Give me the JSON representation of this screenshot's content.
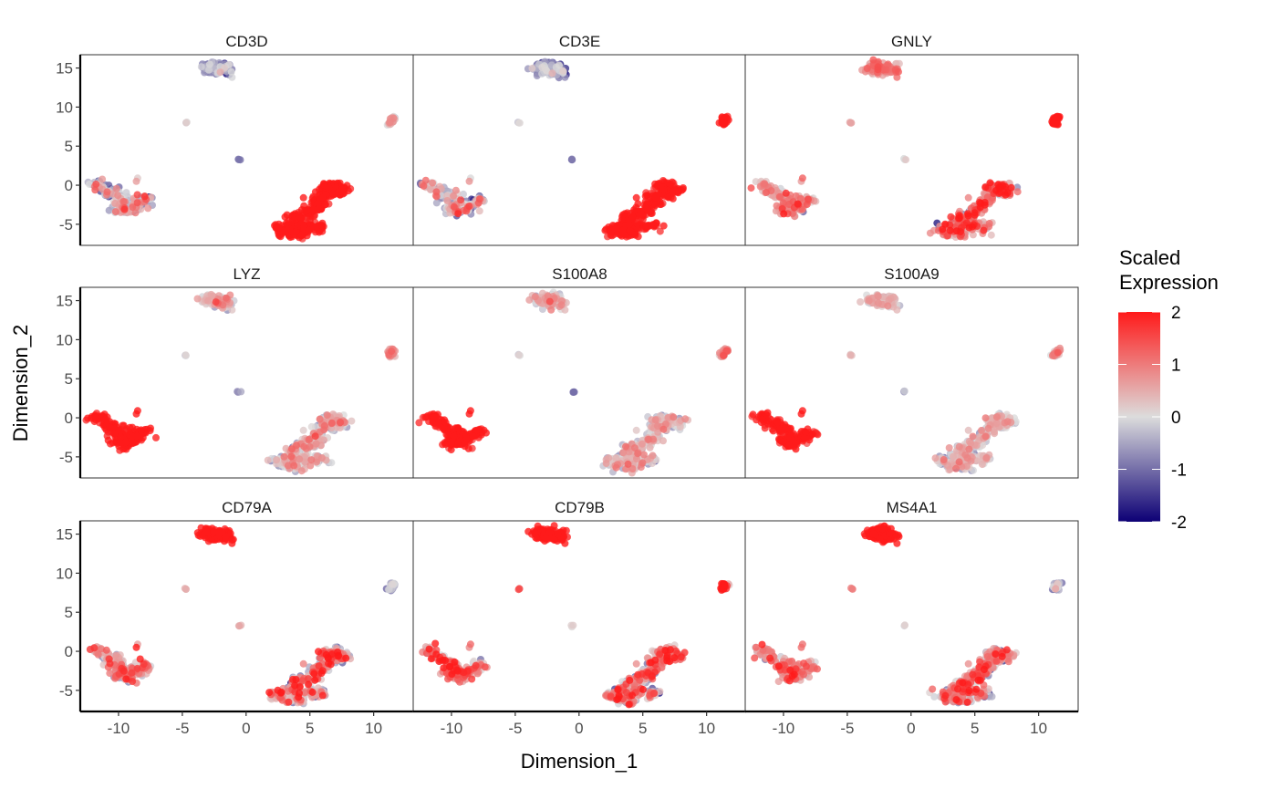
{
  "chart_data": {
    "type": "scatter",
    "facet_layout": "3x3",
    "xlabel": "Dimension_1",
    "ylabel": "Dimension_2",
    "xlim": [
      -13,
      13.1
    ],
    "ylim": [
      -7.7,
      16.7
    ],
    "xticks": [
      -10,
      -5,
      0,
      5,
      10
    ],
    "yticks": [
      -5,
      0,
      5,
      10,
      15
    ],
    "grid": false,
    "legend": {
      "title_lines": [
        "Scaled",
        "Expression"
      ],
      "position": "right",
      "range": [
        -2,
        2
      ],
      "ticks": [
        2,
        1,
        0,
        -1,
        -2
      ],
      "colors": {
        "low": "#0d0075",
        "mid": "#dcdcdc",
        "high": "#ff1a1a"
      }
    },
    "clusters": [
      {
        "id": "top",
        "anchors": [
          [
            -3.0,
            15.0
          ],
          [
            -2.4,
            14.7
          ],
          [
            -1.8,
            15.2
          ],
          [
            -1.6,
            14.6
          ],
          [
            -2.8,
            15.3
          ]
        ],
        "outliers": [
          [
            -1.1,
            13.8
          ]
        ]
      },
      {
        "id": "dot_a",
        "anchors": [
          [
            -4.7,
            8.0
          ]
        ],
        "outliers": []
      },
      {
        "id": "dot_b",
        "anchors": [
          [
            -0.5,
            3.3
          ]
        ],
        "outliers": []
      },
      {
        "id": "right",
        "anchors": [
          [
            11.5,
            8.6
          ],
          [
            11.3,
            8.0
          ]
        ],
        "outliers": []
      },
      {
        "id": "left",
        "anchors": [
          [
            -11.6,
            0.0
          ],
          [
            -10.8,
            -0.8
          ],
          [
            -10.0,
            -1.6
          ],
          [
            -9.5,
            -2.3
          ],
          [
            -9.3,
            -3.3
          ],
          [
            -8.7,
            -2.6
          ],
          [
            -8.0,
            -1.9
          ],
          [
            -9.9,
            -3.0
          ]
        ],
        "outliers": [
          [
            -8.5,
            0.9
          ],
          [
            -8.6,
            0.5
          ]
        ]
      },
      {
        "id": "big",
        "anchors": [
          [
            2.6,
            -5.6
          ],
          [
            3.3,
            -6.0
          ],
          [
            4.1,
            -6.2
          ],
          [
            3.6,
            -5.0
          ],
          [
            4.0,
            -4.0
          ],
          [
            4.8,
            -3.6
          ],
          [
            5.4,
            -3.0
          ],
          [
            5.7,
            -2.3
          ],
          [
            6.1,
            -1.3
          ],
          [
            6.4,
            -0.3
          ],
          [
            7.0,
            -0.1
          ],
          [
            7.6,
            -0.6
          ],
          [
            6.9,
            -0.9
          ],
          [
            5.7,
            -5.3
          ],
          [
            4.6,
            -5.2
          ]
        ],
        "outliers": [
          [
            4.5,
            -1.6
          ]
        ]
      }
    ],
    "panels": [
      {
        "gene": "CD3D",
        "expression": {
          "top": [
            -0.9,
            0.6
          ],
          "dot_a": [
            0,
            0.2
          ],
          "dot_b": [
            -1,
            0.2
          ],
          "right": [
            0.4,
            0.3
          ],
          "left": [
            -0.2,
            0.9
          ],
          "big": [
            2,
            0.2
          ]
        }
      },
      {
        "gene": "CD3E",
        "expression": {
          "top": [
            -0.8,
            0.6
          ],
          "dot_a": [
            0,
            0.2
          ],
          "dot_b": [
            -1,
            0.2
          ],
          "right": [
            2,
            0.2
          ],
          "left": [
            -0.2,
            0.9
          ],
          "big": [
            2,
            0.3
          ]
        }
      },
      {
        "gene": "GNLY",
        "expression": {
          "top": [
            0.8,
            0.4
          ],
          "dot_a": [
            0.6,
            0.2
          ],
          "dot_b": [
            0,
            0.2
          ],
          "right": [
            2,
            0.1
          ],
          "left": [
            0.5,
            0.5
          ],
          "big": [
            0.7,
            0.8
          ]
        }
      },
      {
        "gene": "LYZ",
        "expression": {
          "top": [
            0.1,
            0.5
          ],
          "dot_a": [
            0,
            0.2
          ],
          "dot_b": [
            -0.6,
            0.2
          ],
          "right": [
            0.6,
            0.4
          ],
          "left": [
            2,
            0.2
          ],
          "big": [
            0,
            0.6
          ]
        }
      },
      {
        "gene": "S100A8",
        "expression": {
          "top": [
            0.2,
            0.4
          ],
          "dot_a": [
            0,
            0.2
          ],
          "dot_b": [
            -0.8,
            0.2
          ],
          "right": [
            0.7,
            0.4
          ],
          "left": [
            2,
            0.3
          ],
          "big": [
            0,
            0.5
          ]
        }
      },
      {
        "gene": "S100A9",
        "expression": {
          "top": [
            0.1,
            0.4
          ],
          "dot_a": [
            0.5,
            0.2
          ],
          "dot_b": [
            -0.4,
            0.2
          ],
          "right": [
            0.7,
            0.4
          ],
          "left": [
            2,
            0.3
          ],
          "big": [
            0,
            0.5
          ]
        }
      },
      {
        "gene": "CD79A",
        "expression": {
          "top": [
            2,
            0.1
          ],
          "dot_a": [
            0.5,
            0.1
          ],
          "dot_b": [
            0.4,
            0.1
          ],
          "right": [
            -0.7,
            0.5
          ],
          "left": [
            0.5,
            0.7
          ],
          "big": [
            0.3,
            0.9
          ]
        }
      },
      {
        "gene": "CD79B",
        "expression": {
          "top": [
            2,
            0.1
          ],
          "dot_a": [
            1.3,
            0.1
          ],
          "dot_b": [
            0.2,
            0.1
          ],
          "right": [
            1.2,
            0.8
          ],
          "left": [
            0.7,
            0.7
          ],
          "big": [
            0.5,
            0.9
          ]
        }
      },
      {
        "gene": "MS4A1",
        "expression": {
          "top": [
            2,
            0.1
          ],
          "dot_a": [
            1,
            0.1
          ],
          "dot_b": [
            0,
            0.1
          ],
          "right": [
            -0.6,
            0.6
          ],
          "left": [
            0.5,
            0.7
          ],
          "big": [
            0.4,
            0.9
          ]
        }
      }
    ]
  }
}
